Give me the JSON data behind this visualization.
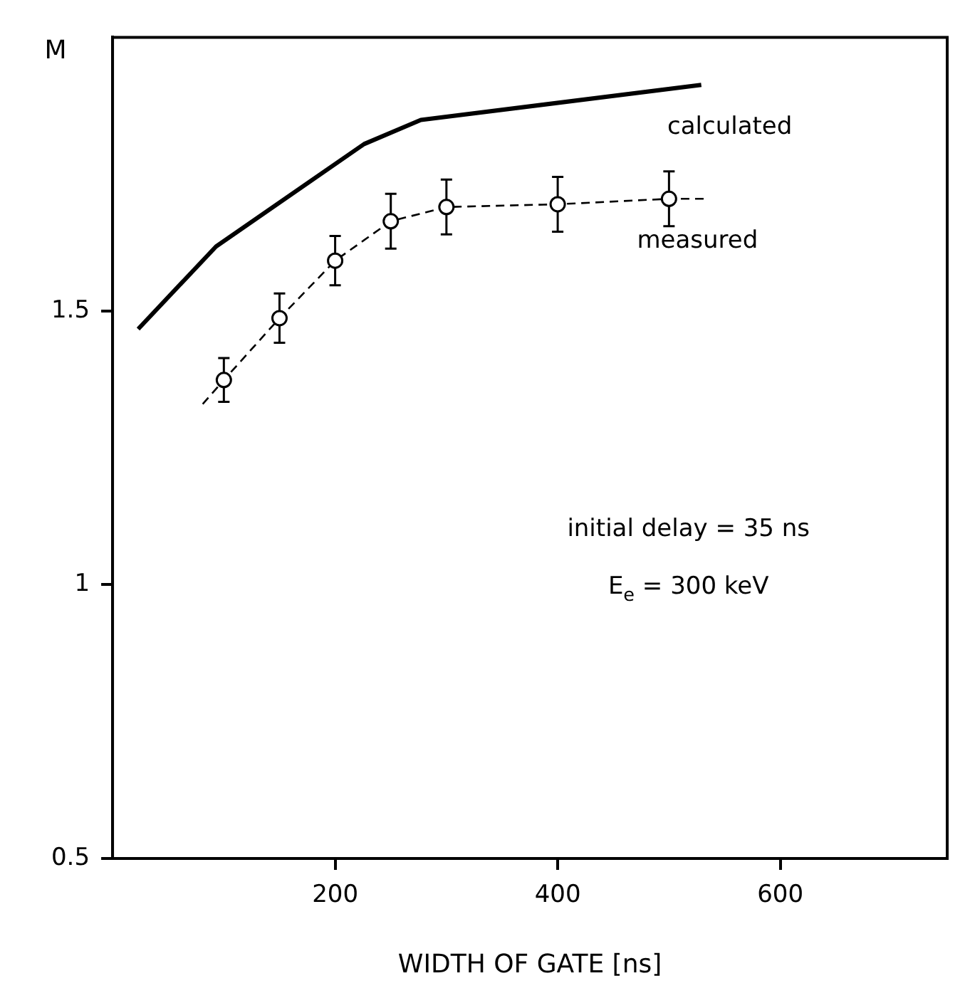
{
  "chart_data": {
    "type": "scatter",
    "ylabel": "M",
    "xlabel": "WIDTH OF GATE [ns]",
    "xlim": [
      0,
      750
    ],
    "xticks": [
      200,
      400,
      600
    ],
    "ylim": [
      0.5,
      2.0
    ],
    "yticks": [
      0.5,
      1,
      1.5
    ],
    "grid": false,
    "legend": false,
    "marker": "circle",
    "series": [
      {
        "name": "calculated",
        "type": "line",
        "color": "#000000",
        "line_style": "solid",
        "marker": "none",
        "x": [
          23,
          93,
          226,
          277,
          529
        ],
        "values": [
          1.467,
          1.618,
          1.805,
          1.849,
          1.913
        ]
      },
      {
        "name": "measured",
        "color": "#000000",
        "x": [
          100,
          150,
          200,
          250,
          300,
          400,
          500
        ],
        "values": [
          1.374,
          1.487,
          1.592,
          1.664,
          1.69,
          1.695,
          1.705
        ],
        "errors": [
          0.04,
          0.045,
          0.045,
          0.05,
          0.05,
          0.05,
          0.05
        ]
      },
      {
        "type": "line",
        "color": "#000000",
        "line_style": "dashed",
        "marker": "none",
        "x": [
          81,
          100,
          150,
          200,
          250,
          300,
          400,
          500,
          535
        ],
        "values": [
          1.33,
          1.374,
          1.487,
          1.592,
          1.664,
          1.69,
          1.695,
          1.705,
          1.705
        ]
      }
    ],
    "annotations": [
      "initial delay = 35 ns",
      "E$_{e}$ = 300 keV"
    ]
  }
}
